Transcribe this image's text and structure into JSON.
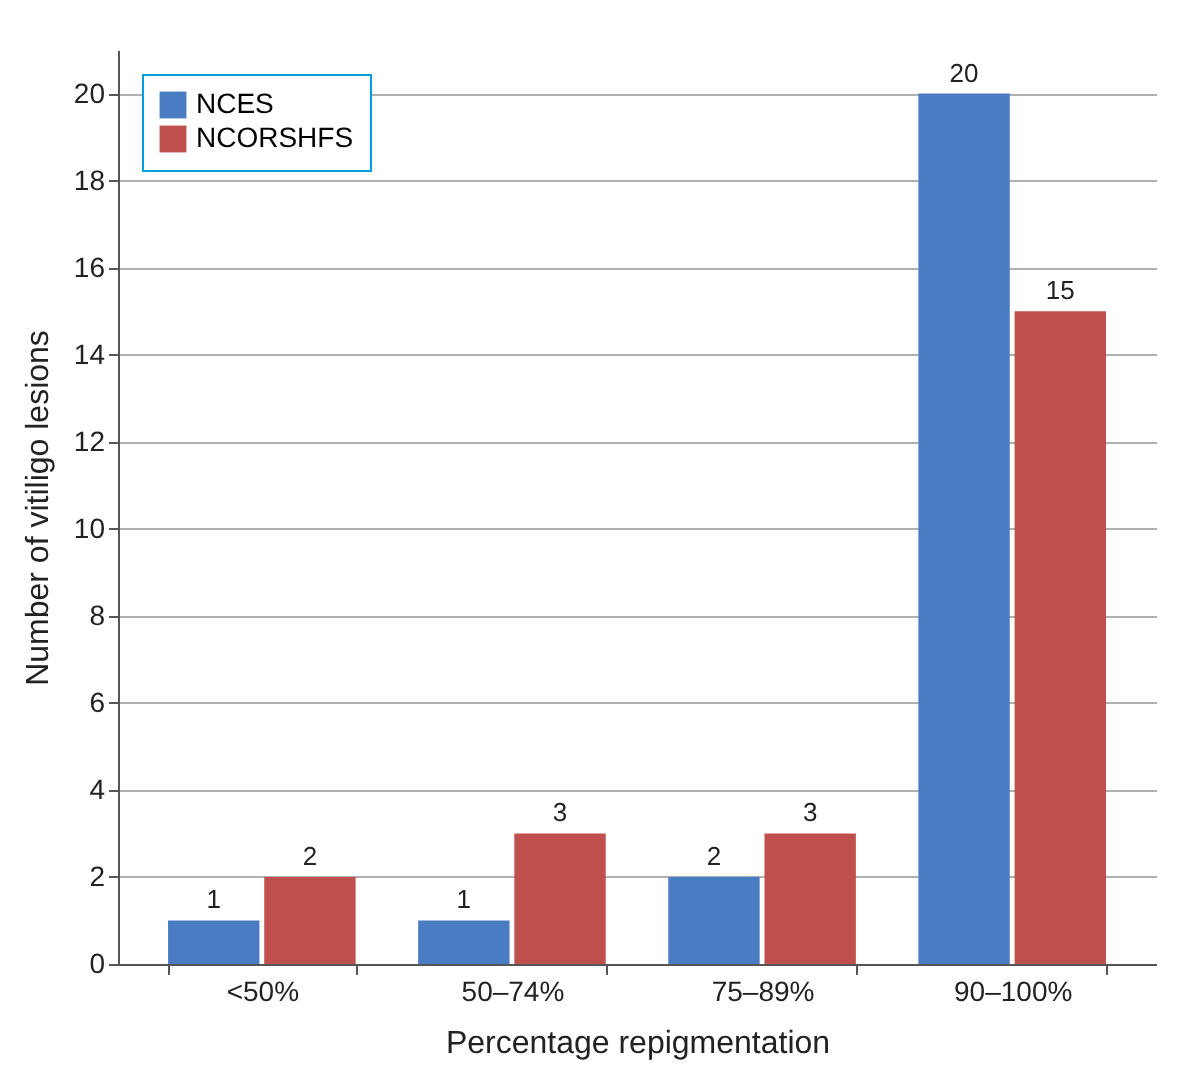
{
  "chart_data": {
    "type": "bar",
    "xlabel": "Percentage repigmentation",
    "ylabel": "Number of vitiligo lesions",
    "categories": [
      "<50%",
      "50–74%",
      "75–89%",
      "90–100%"
    ],
    "series": [
      {
        "name": "NCES",
        "color": "#4a7cc4",
        "values": [
          1,
          1,
          2,
          20
        ]
      },
      {
        "name": "NCORSHFS",
        "color": "#c0504d",
        "values": [
          2,
          3,
          3,
          15
        ]
      }
    ],
    "ylim": [
      0,
      21
    ],
    "yticks": [
      0,
      2,
      4,
      6,
      8,
      10,
      12,
      14,
      16,
      18,
      20
    ],
    "grid": "y",
    "legend": "top left",
    "data_labels": true
  }
}
